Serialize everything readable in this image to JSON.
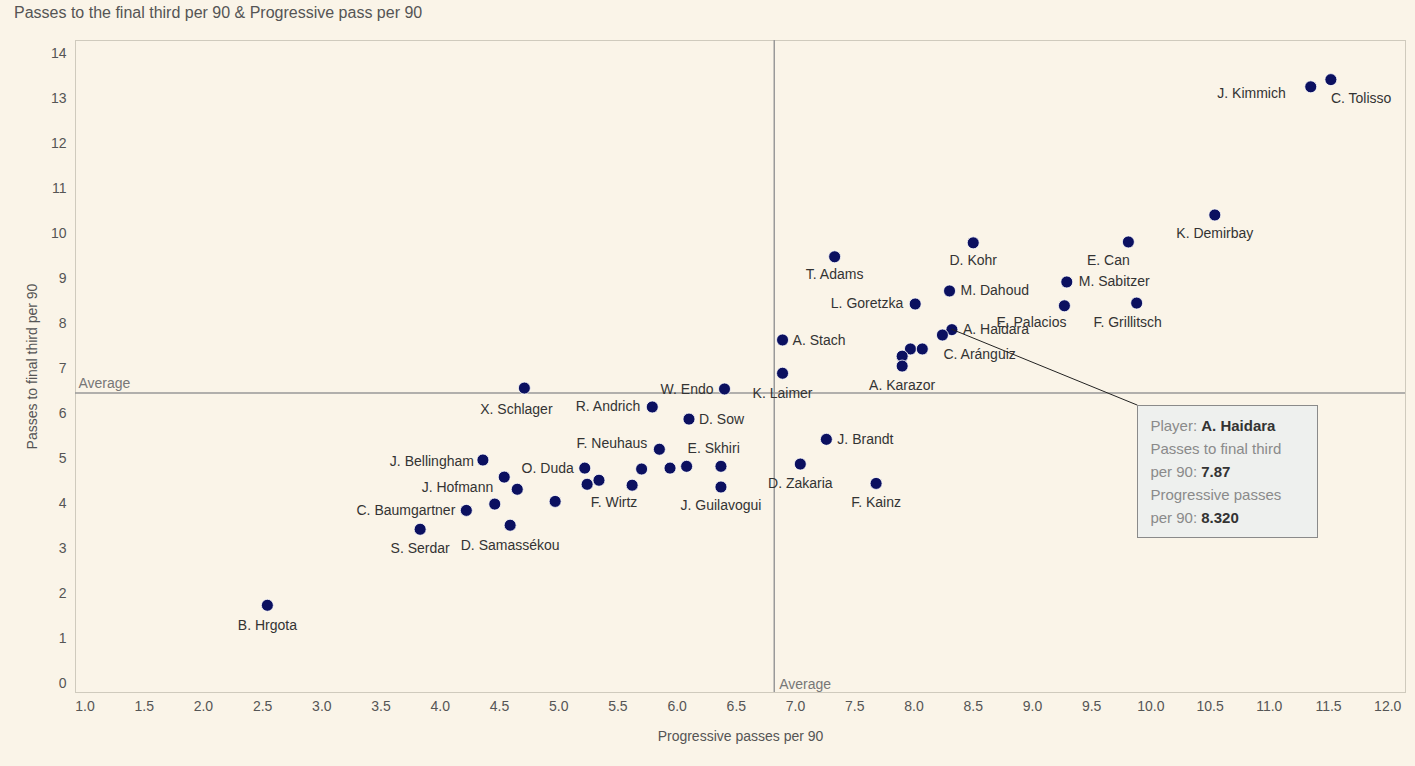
{
  "chart_data": {
    "type": "scatter",
    "title": "Passes to the final third per 90 & Progressive pass per 90",
    "x_label": "Progressive passes per 90",
    "y_label": "Passes to final third per 90",
    "color": "#0b1060",
    "grid": false,
    "labels": [
      "J. Kimmich",
      "C. Tolisso",
      "K. Demirbay",
      "E. Can",
      "M. Sabitzer",
      "E. Palacios",
      "F. Grillitsch",
      "D. Kohr",
      "T. Adams",
      "M. Dahoud",
      "L. Goretzka",
      "A. Haidara",
      "C. Aránguiz",
      null,
      null,
      null,
      "A. Karazor",
      "A. Stach",
      "K. Laimer",
      "W. Endo",
      "X. Schlager",
      "R. Andrich",
      "D. Sow",
      "F. Neuhaus",
      "J. Brandt",
      "D. Zakaria",
      "F. Kainz",
      "E. Skhiri",
      null,
      null,
      null,
      null,
      "J. Guilavogui",
      "O. Duda",
      "F. Wirtz",
      null,
      "J. Bellingham",
      "J. Hofmann",
      null,
      null,
      null,
      "C. Baumgartner",
      "D. Samassékou",
      "S. Serdar",
      "B. Hrgota"
    ],
    "x": [
      11.35,
      11.52,
      10.54,
      9.81,
      9.29,
      9.27,
      9.88,
      8.5,
      7.33,
      8.3,
      8.01,
      8.32,
      8.24,
      7.97,
      8.07,
      7.9,
      7.9,
      6.89,
      6.89,
      6.4,
      4.71,
      5.79,
      6.1,
      5.85,
      7.26,
      7.04,
      7.68,
      6.08,
      6.37,
      5.94,
      5.7,
      5.62,
      6.37,
      5.22,
      5.34,
      5.24,
      4.36,
      4.54,
      4.65,
      4.46,
      4.97,
      4.22,
      4.59,
      3.83,
      2.54
    ],
    "y": [
      13.27,
      13.43,
      10.42,
      9.82,
      8.93,
      8.4,
      8.46,
      9.8,
      9.49,
      8.73,
      8.44,
      7.87,
      7.75,
      7.44,
      7.44,
      7.28,
      7.06,
      7.64,
      6.9,
      6.55,
      6.57,
      6.15,
      5.88,
      5.21,
      5.43,
      4.88,
      4.45,
      4.83,
      4.83,
      4.79,
      4.77,
      4.41,
      4.37,
      4.79,
      4.52,
      4.43,
      4.97,
      4.59,
      4.32,
      3.99,
      4.05,
      3.85,
      3.52,
      3.43,
      1.74
    ],
    "xlim": [
      0.92,
      12.15
    ],
    "ylim": [
      -0.2,
      14.3
    ],
    "xticks": [
      {
        "value": 1,
        "label": "1.0"
      },
      1.5,
      {
        "value": 2,
        "label": "2.0"
      },
      2.5,
      {
        "value": 3,
        "label": "3.0"
      },
      3.5,
      {
        "value": 4,
        "label": "4.0"
      },
      4.5,
      {
        "value": 5,
        "label": "5.0"
      },
      5.5,
      {
        "value": 6,
        "label": "6.0"
      },
      6.5,
      {
        "value": 7,
        "label": "7.0"
      },
      7.5,
      {
        "value": 8,
        "label": "8.0"
      },
      8.5,
      {
        "value": 9,
        "label": "9.0"
      },
      9.5,
      {
        "value": 10,
        "label": "10.0"
      },
      10.5,
      {
        "value": 11,
        "label": "11.0"
      },
      11.5,
      {
        "value": 12,
        "label": "12.0"
      }
    ],
    "yticks": [
      0,
      1,
      2,
      3,
      4,
      5,
      6,
      7,
      8,
      9,
      10,
      11,
      12,
      13,
      14
    ],
    "averages": {
      "x": 6.82,
      "y": 6.46,
      "label": "Average"
    },
    "annotation": {
      "point": "A. Haidara",
      "rows": [
        [
          "Player:",
          "A. Haidara"
        ],
        [
          "Passes to final third per 90:",
          "7.87"
        ],
        [
          "Progressive passes per 90:",
          "8.320"
        ]
      ]
    }
  }
}
